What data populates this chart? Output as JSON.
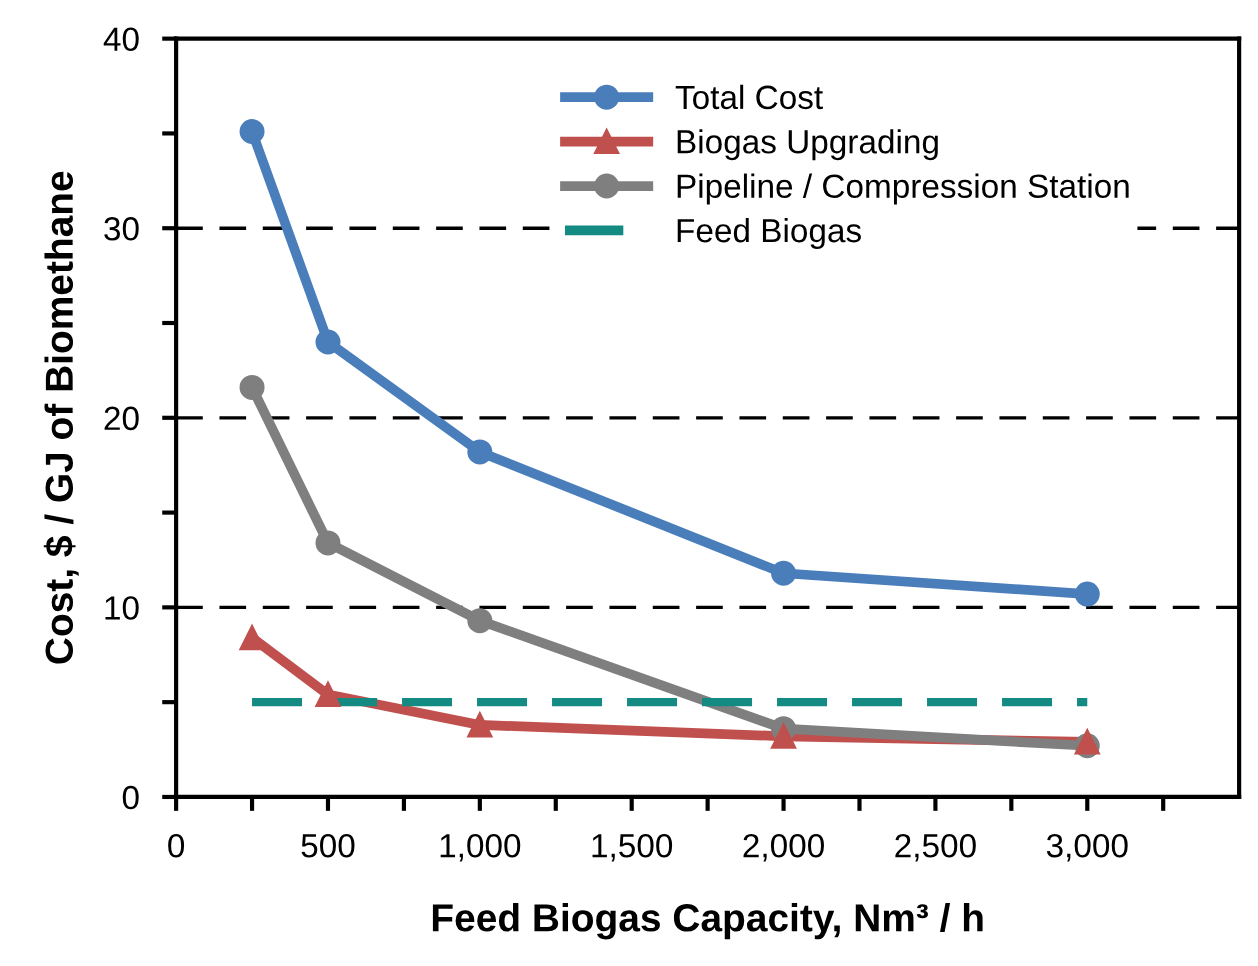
{
  "chart_data": {
    "type": "line",
    "xlabel": "Feed Biogas Capacity, Nm³ / h",
    "ylabel": "Cost, $ / GJ of Biomethane",
    "xlim": [
      0,
      3500
    ],
    "xticks": [
      0,
      {
        "value": 250,
        "label": null
      },
      {
        "value": 500,
        "label": "500"
      },
      {
        "value": 750,
        "label": null
      },
      {
        "value": 1000,
        "label": "1,000"
      },
      {
        "value": 1250,
        "label": null
      },
      {
        "value": 1500,
        "label": "1,500"
      },
      {
        "value": 1750,
        "label": null
      },
      {
        "value": 2000,
        "label": "2,000"
      },
      {
        "value": 2250,
        "label": null
      },
      {
        "value": 2500,
        "label": "2,500"
      },
      {
        "value": 2750,
        "label": null
      },
      {
        "value": 3000,
        "label": "3,000"
      },
      {
        "value": 3250,
        "label": null
      }
    ],
    "ylim": [
      0,
      40
    ],
    "yticks": [
      0,
      {
        "value": 5,
        "label": null
      },
      10,
      {
        "value": 15,
        "label": null
      },
      20,
      {
        "value": 25,
        "label": null
      },
      30,
      {
        "value": 35,
        "label": null
      },
      40
    ],
    "grid": "y",
    "legend": "top right",
    "series": [
      {
        "name": "Total Cost",
        "color": "#4a7ebb",
        "marker": "circle",
        "line_style": "solid",
        "x": [
          250,
          500,
          1000,
          2000,
          3000
        ],
        "values": [
          35.1,
          24.0,
          18.2,
          11.8,
          10.7
        ]
      },
      {
        "name": "Biogas Upgrading",
        "color": "#c0504d",
        "marker": "triangle",
        "line_style": "solid",
        "x": [
          250,
          500,
          1000,
          2000,
          3000
        ],
        "values": [
          8.4,
          5.4,
          3.8,
          3.2,
          2.9
        ]
      },
      {
        "name": "Pipeline / Compression Station",
        "color": "#7f7f7f",
        "marker": "circle",
        "line_style": "solid",
        "x": [
          250,
          500,
          1000,
          2000,
          3000
        ],
        "values": [
          21.6,
          13.4,
          9.3,
          3.6,
          2.7
        ]
      },
      {
        "name": "Feed Biogas",
        "color": "#138a82",
        "marker": "none",
        "line_style": "dashed",
        "x": [
          250,
          3000
        ],
        "values": [
          5,
          5
        ]
      }
    ]
  }
}
